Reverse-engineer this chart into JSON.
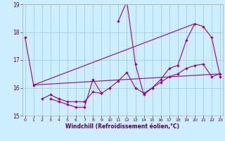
{
  "xlabel": "Windchill (Refroidissement éolien,°C)",
  "background_color": "#cceeff",
  "grid_color": "#99cccc",
  "line_color": "#990099",
  "x_hours": [
    0,
    1,
    2,
    3,
    4,
    5,
    6,
    7,
    8,
    9,
    10,
    11,
    12,
    13,
    14,
    15,
    16,
    17,
    18,
    19,
    20,
    21,
    22,
    23
  ],
  "series1": [
    17.8,
    16.1,
    null,
    15.6,
    15.5,
    15.4,
    15.3,
    15.3,
    16.3,
    15.8,
    null,
    18.4,
    19.1,
    16.85,
    15.75,
    16.0,
    16.3,
    16.7,
    16.8,
    17.7,
    18.3,
    18.2,
    17.8,
    16.4
  ],
  "series2": [
    null,
    null,
    15.6,
    15.75,
    15.6,
    15.5,
    15.5,
    15.5,
    15.85,
    15.8,
    16.0,
    16.25,
    16.55,
    16.0,
    15.8,
    16.0,
    16.2,
    16.4,
    16.5,
    16.7,
    16.8,
    16.85,
    16.4,
    16.5
  ],
  "series3_x": [
    1,
    23
  ],
  "series3_y": [
    16.1,
    16.5
  ],
  "series4_x": [
    1,
    20
  ],
  "series4_y": [
    16.1,
    18.3
  ],
  "ylim": [
    15,
    19
  ],
  "yticks": [
    15,
    16,
    17,
    18,
    19
  ],
  "xlim": [
    -0.3,
    23.3
  ],
  "xticks": [
    0,
    1,
    2,
    3,
    4,
    5,
    6,
    7,
    8,
    9,
    10,
    11,
    12,
    13,
    14,
    15,
    16,
    17,
    18,
    19,
    20,
    21,
    22,
    23
  ]
}
